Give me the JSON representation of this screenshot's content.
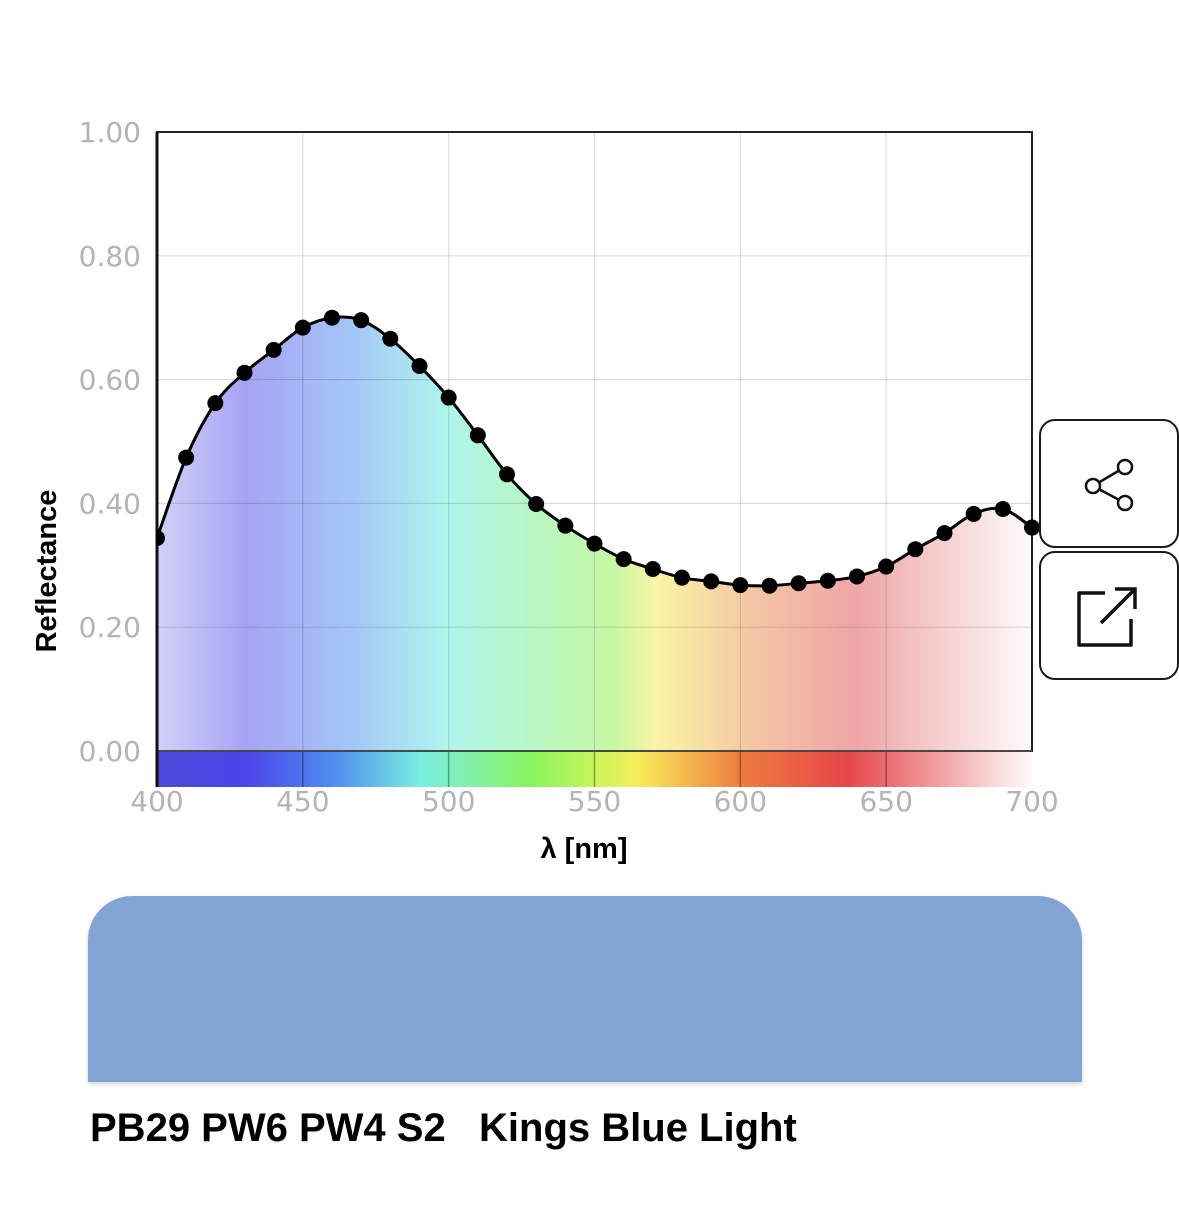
{
  "chart_data": {
    "type": "line",
    "xlabel": "λ [nm]",
    "ylabel": "Reflectance",
    "xlim": [
      400,
      700
    ],
    "ylim": [
      0,
      1
    ],
    "xticks": [
      "400",
      "450",
      "500",
      "550",
      "600",
      "650",
      "700"
    ],
    "yticks": [
      "0.00",
      "0.20",
      "0.40",
      "0.60",
      "0.80",
      "1.00"
    ],
    "grid": true,
    "series": [
      {
        "x": [
          400,
          410,
          420,
          430,
          440,
          450,
          460,
          470,
          480,
          490,
          500,
          510,
          520,
          530,
          540,
          550,
          560,
          570,
          580,
          590,
          600,
          610,
          620,
          630,
          640,
          650,
          660,
          670,
          680,
          690,
          700
        ],
        "values": [
          0.344,
          0.474,
          0.562,
          0.611,
          0.648,
          0.684,
          0.7,
          0.696,
          0.666,
          0.622,
          0.571,
          0.51,
          0.447,
          0.399,
          0.364,
          0.335,
          0.31,
          0.294,
          0.28,
          0.274,
          0.268,
          0.267,
          0.271,
          0.275,
          0.282,
          0.298,
          0.326,
          0.352,
          0.383,
          0.391,
          0.361
        ]
      }
    ]
  },
  "colors": {
    "swatch": "#84a3d5",
    "spectrum": [
      "#4a44ea",
      "#4f8cf0",
      "#79eee2",
      "#8bf35c",
      "#f9ec5a",
      "#ee7a3e",
      "#e6464a",
      "#fefbfb"
    ]
  },
  "share_button": {
    "icon": "share-icon"
  },
  "open_button": {
    "icon": "external-link-icon"
  },
  "paint": {
    "pigments": "PB29 PW6 PW4 S2",
    "name": "Kings Blue Light"
  }
}
